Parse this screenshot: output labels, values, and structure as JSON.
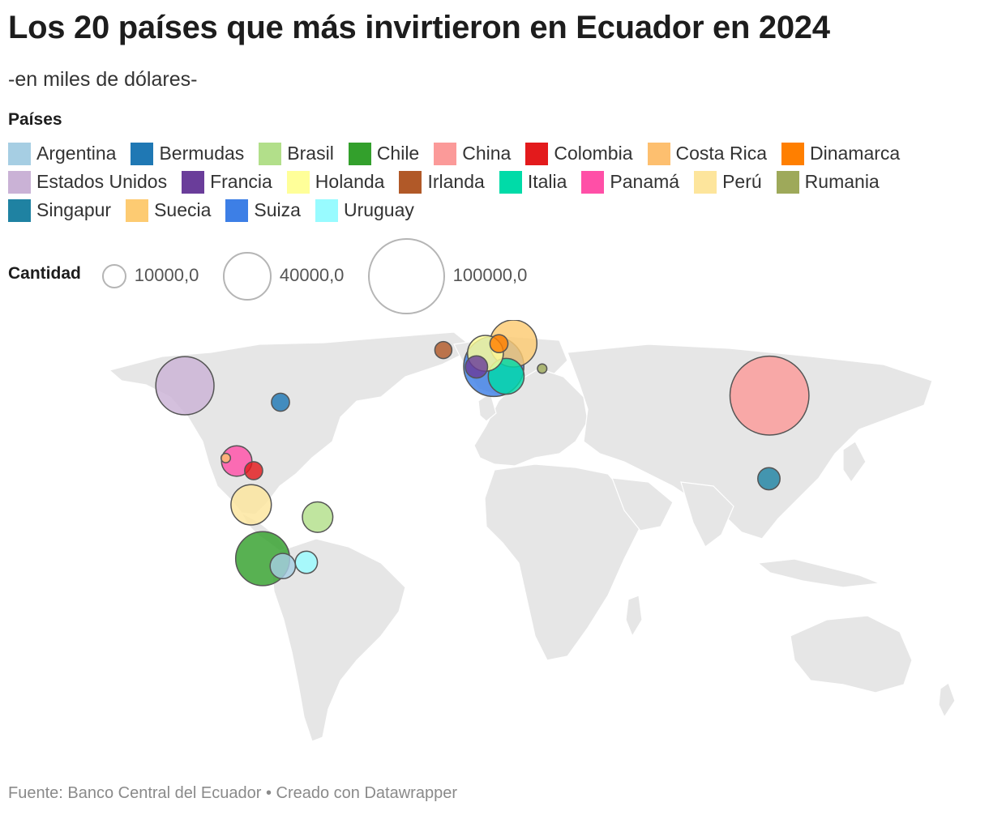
{
  "title": "Los 20 países que más invirtieron en Ecuador en 2024",
  "subtitle": "-en miles de dólares-",
  "legend": {
    "heading": "Países",
    "rows": [
      [
        {
          "label": "Argentina",
          "color": "#a6cee3"
        },
        {
          "label": "Bermudas",
          "color": "#1f78b4"
        },
        {
          "label": "Brasil",
          "color": "#b2df8a"
        },
        {
          "label": "Chile",
          "color": "#33a02c"
        },
        {
          "label": "China",
          "color": "#fb9a99"
        },
        {
          "label": "Colombia",
          "color": "#e31a1c"
        },
        {
          "label": "Costa Rica",
          "color": "#fdbf6f"
        },
        {
          "label": "Dinamarca",
          "color": "#ff7f00"
        }
      ],
      [
        {
          "label": "Estados Unidos",
          "color": "#cab2d6"
        },
        {
          "label": "Francia",
          "color": "#6a3d9a"
        },
        {
          "label": "Holanda",
          "color": "#ffff99"
        },
        {
          "label": "Irlanda",
          "color": "#b15928"
        },
        {
          "label": "Italia",
          "color": "#00dba8"
        },
        {
          "label": "Panamá",
          "color": "#ff4fa7"
        },
        {
          "label": "Perú",
          "color": "#fde59c"
        },
        {
          "label": "Rumania",
          "color": "#9ea95a"
        }
      ],
      [
        {
          "label": "Singapur",
          "color": "#1f82a2"
        },
        {
          "label": "Suecia",
          "color": "#fdcb72"
        },
        {
          "label": "Suiza",
          "color": "#3d7fe6"
        },
        {
          "label": "Uruguay",
          "color": "#98fbff"
        }
      ]
    ]
  },
  "size_legend": {
    "title": "Cantidad",
    "items": [
      {
        "label": "10000,0",
        "value": 10000
      },
      {
        "label": "40000,0",
        "value": 40000
      },
      {
        "label": "100000,0",
        "value": 100000
      }
    ]
  },
  "footer": "Fuente: Banco Central del Ecuador • Creado con Datawrapper",
  "chart_data": {
    "type": "bubble-map",
    "title": "Los 20 países que más invirtieron en Ecuador en 2024",
    "subtitle": "-en miles de dólares-",
    "size_scale_reference": [
      10000,
      40000,
      100000
    ],
    "points": [
      {
        "country": "China",
        "value": 107000,
        "lat": 35.0,
        "lon": 104.0,
        "color": "#fb9a99"
      },
      {
        "country": "Chile",
        "value": 50000,
        "lat": -31.0,
        "lon": -71.0,
        "color": "#33a02c"
      },
      {
        "country": "Estados Unidos",
        "value": 58000,
        "lat": 39.0,
        "lon": -98.0,
        "color": "#cab2d6"
      },
      {
        "country": "Suiza",
        "value": 62000,
        "lat": 46.8,
        "lon": 8.2,
        "color": "#3d7fe6"
      },
      {
        "country": "Suecia",
        "value": 38000,
        "lat": 62.0,
        "lon": 15.0,
        "color": "#fdcb72"
      },
      {
        "country": "Italia",
        "value": 22000,
        "lat": 42.8,
        "lon": 12.5,
        "color": "#00dba8"
      },
      {
        "country": "Holanda",
        "value": 22000,
        "lat": 52.1,
        "lon": 5.3,
        "color": "#ffff99"
      },
      {
        "country": "Perú",
        "value": 28000,
        "lat": -9.2,
        "lon": -75.0,
        "color": "#fde59c"
      },
      {
        "country": "Panamá",
        "value": 16000,
        "lat": 8.5,
        "lon": -80.0,
        "color": "#ff4fa7"
      },
      {
        "country": "Brasil",
        "value": 16000,
        "lat": -14.2,
        "lon": -51.9,
        "color": "#b2df8a"
      },
      {
        "country": "Argentina",
        "value": 11000,
        "lat": -34.0,
        "lon": -64.0,
        "color": "#a6cee3"
      },
      {
        "country": "Uruguay",
        "value": 8500,
        "lat": -32.5,
        "lon": -55.8,
        "color": "#98fbff"
      },
      {
        "country": "Francia",
        "value": 8500,
        "lat": 46.6,
        "lon": 2.2,
        "color": "#6a3d9a"
      },
      {
        "country": "Singapur",
        "value": 8500,
        "lat": 1.35,
        "lon": 103.8,
        "color": "#1f82a2"
      },
      {
        "country": "Dinamarca",
        "value": 5500,
        "lat": 56.0,
        "lon": 10.0,
        "color": "#ff7f00"
      },
      {
        "country": "Bermudas",
        "value": 5500,
        "lat": 32.3,
        "lon": -64.8,
        "color": "#1f78b4"
      },
      {
        "country": "Colombia",
        "value": 5500,
        "lat": 4.6,
        "lon": -74.1,
        "color": "#e31a1c"
      },
      {
        "country": "Irlanda",
        "value": 5000,
        "lat": 53.4,
        "lon": -8.2,
        "color": "#b15928"
      },
      {
        "country": "Rumania",
        "value": 1500,
        "lat": 45.9,
        "lon": 25.0,
        "color": "#9ea95a"
      },
      {
        "country": "Costa Rica",
        "value": 1500,
        "lat": 9.7,
        "lon": -83.8,
        "color": "#fdbf6f"
      }
    ]
  }
}
